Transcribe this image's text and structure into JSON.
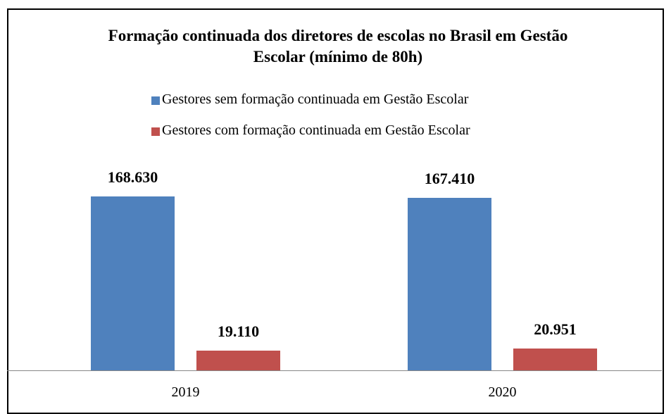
{
  "chart_data": {
    "type": "bar",
    "title": "Formação continuada dos diretores de escolas no Brasil em Gestão Escolar (mínimo de 80h)",
    "categories": [
      "2019",
      "2020"
    ],
    "series": [
      {
        "name": "Gestores sem formação continuada em Gestão Escolar",
        "color": "#4f81bd",
        "values": [
          168630,
          167410
        ],
        "value_labels": [
          "168.630",
          "167.410"
        ]
      },
      {
        "name": "Gestores com formação continuada em Gestão Escolar",
        "color": "#c0504d",
        "values": [
          19110,
          20951
        ],
        "value_labels": [
          "19.110",
          "20.951"
        ]
      }
    ],
    "legend": "top"
  }
}
